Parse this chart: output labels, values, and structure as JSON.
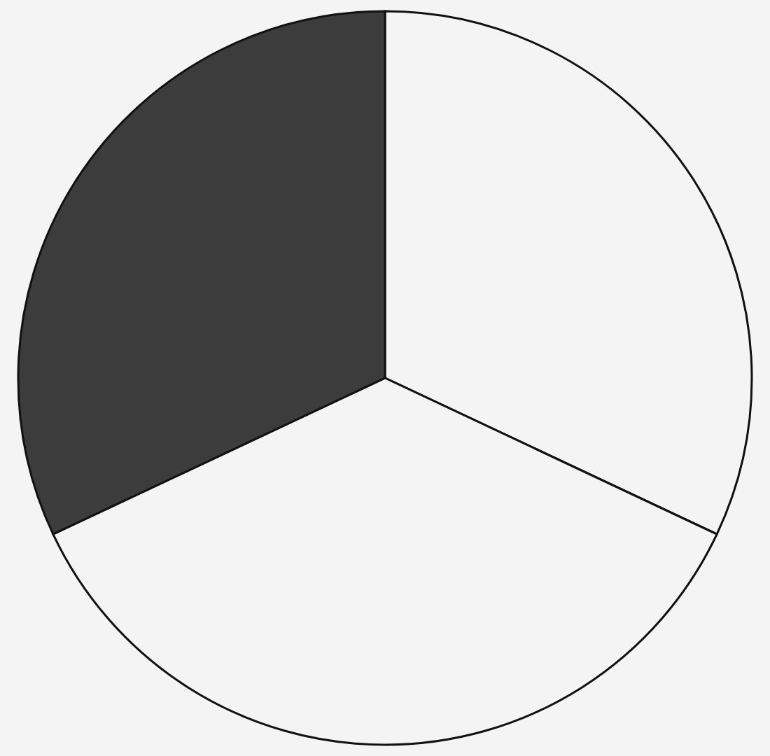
{
  "chart_data": {
    "type": "pie",
    "categories": [
      null,
      null,
      null
    ],
    "values": [
      32,
      36,
      32
    ],
    "colors": [
      "#f4f4f4",
      "#f4f4f4",
      "#3c3c3c"
    ],
    "legend": false
  }
}
